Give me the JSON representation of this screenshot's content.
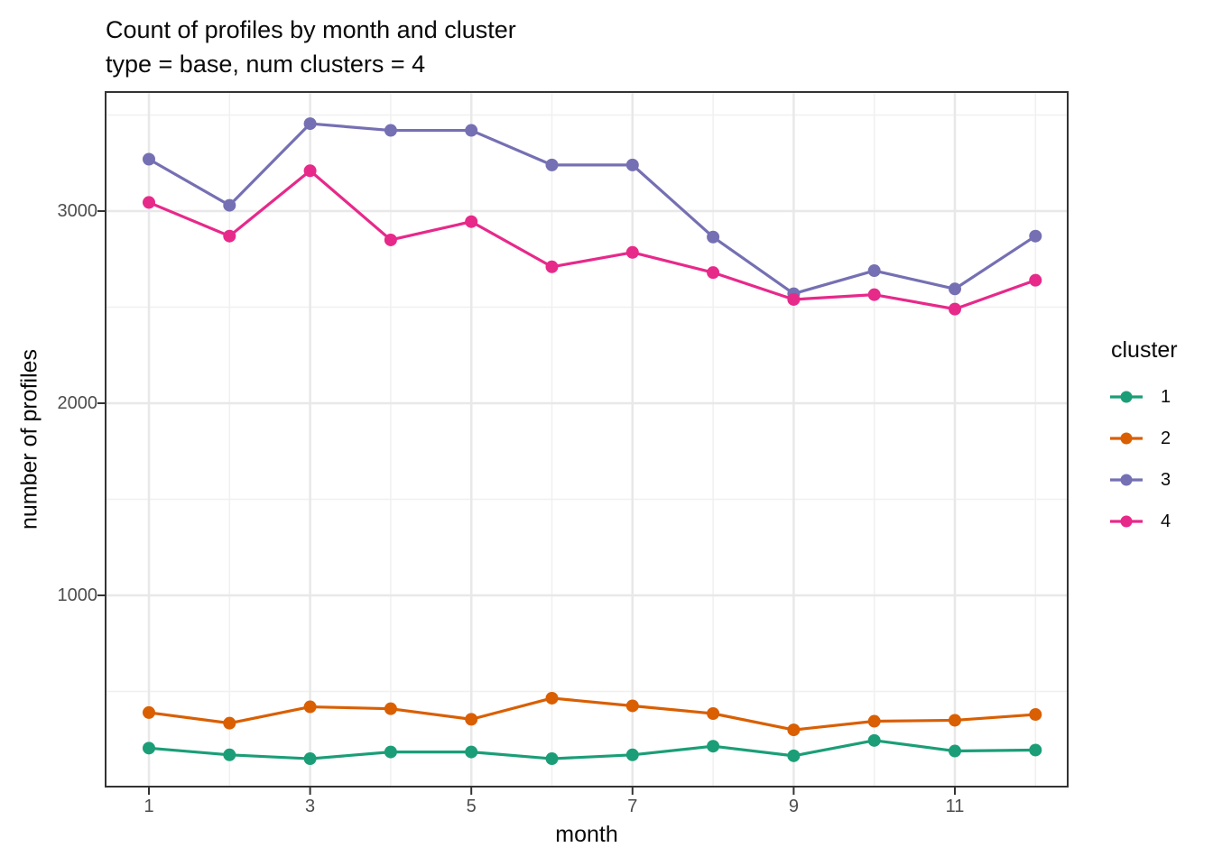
{
  "title": "Count of profiles by month and cluster",
  "subtitle": "type = base, num clusters = 4",
  "chart_data": {
    "type": "line",
    "title": "Count of profiles by month and cluster",
    "subtitle": "type = base, num clusters = 4",
    "xlabel": "month",
    "ylabel": "number of profiles",
    "legend_title": "cluster",
    "legend_position": "right",
    "grid": "major and minor gridlines, light gray on white, dark panel border",
    "x": [
      1,
      2,
      3,
      4,
      5,
      6,
      7,
      8,
      9,
      10,
      11,
      12
    ],
    "x_major_ticks": [
      1,
      3,
      5,
      7,
      9,
      11
    ],
    "x_tick_labels": [
      "1",
      "3",
      "5",
      "7",
      "9",
      "11"
    ],
    "x_minor_gridlines": [
      2,
      4,
      6,
      8,
      10,
      12
    ],
    "y_major_ticks": [
      1000,
      2000,
      3000
    ],
    "y_tick_labels": [
      "1000",
      "2000",
      "3000"
    ],
    "y_minor_gridlines": [
      500,
      1500,
      2500,
      3500
    ],
    "ylim": [
      -26,
      3620
    ],
    "xlim": [
      0.45,
      12.55
    ],
    "series": [
      {
        "name": "1",
        "color": "#1B9E77",
        "values": [
          205,
          170,
          150,
          185,
          185,
          150,
          170,
          215,
          165,
          245,
          190,
          195
        ]
      },
      {
        "name": "2",
        "color": "#D95F02",
        "values": [
          390,
          335,
          420,
          410,
          355,
          465,
          425,
          385,
          300,
          345,
          350,
          380
        ]
      },
      {
        "name": "3",
        "color": "#7570B3",
        "values": [
          3270,
          3030,
          3455,
          3420,
          3420,
          3240,
          3240,
          2865,
          2570,
          2690,
          2595,
          2870
        ]
      },
      {
        "name": "4",
        "color": "#E7298A",
        "values": [
          3045,
          2870,
          3210,
          2850,
          2945,
          2710,
          2785,
          2680,
          2540,
          2565,
          2490,
          2640
        ]
      }
    ]
  },
  "style_colors": {
    "panel_border": "#333333",
    "major_gridline": "#e8e8e8",
    "minor_gridline": "#f0f0f0",
    "tick_mark": "#333333",
    "tick_label": "#4d4d4d"
  }
}
